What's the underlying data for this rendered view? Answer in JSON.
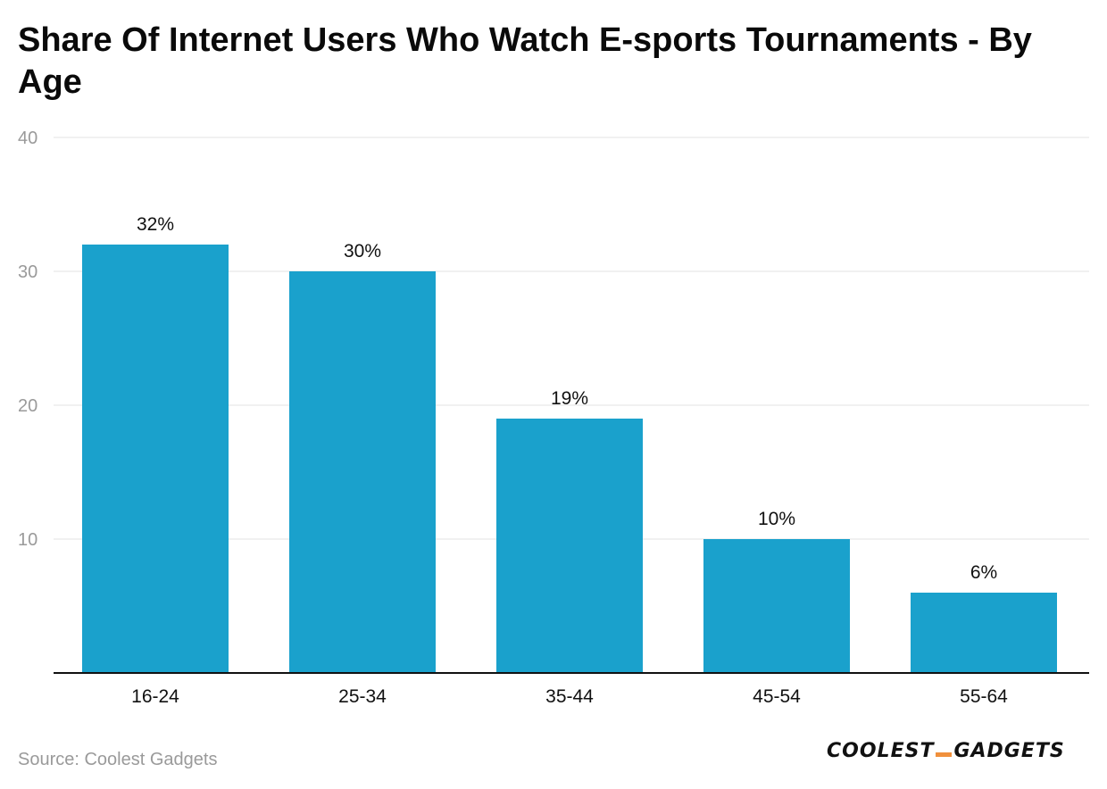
{
  "chart_data": {
    "type": "bar",
    "title": "Share Of Internet Users Who Watch E-sports Tournaments - By Age",
    "categories": [
      "16-24",
      "25-34",
      "35-44",
      "45-54",
      "55-64"
    ],
    "values": [
      32,
      30,
      19,
      10,
      6
    ],
    "data_labels": [
      "32%",
      "30%",
      "19%",
      "10%",
      "6%"
    ],
    "xlabel": "",
    "ylabel": "",
    "ylim": [
      0,
      40
    ],
    "y_ticks": [
      10,
      20,
      30,
      40
    ],
    "grid": true,
    "bar_color": "#1aa1cc"
  },
  "source": "Source: Coolest Gadgets",
  "logo": {
    "left": "COOLEST",
    "right": "GADGETS",
    "accent_color": "#f0903c"
  }
}
